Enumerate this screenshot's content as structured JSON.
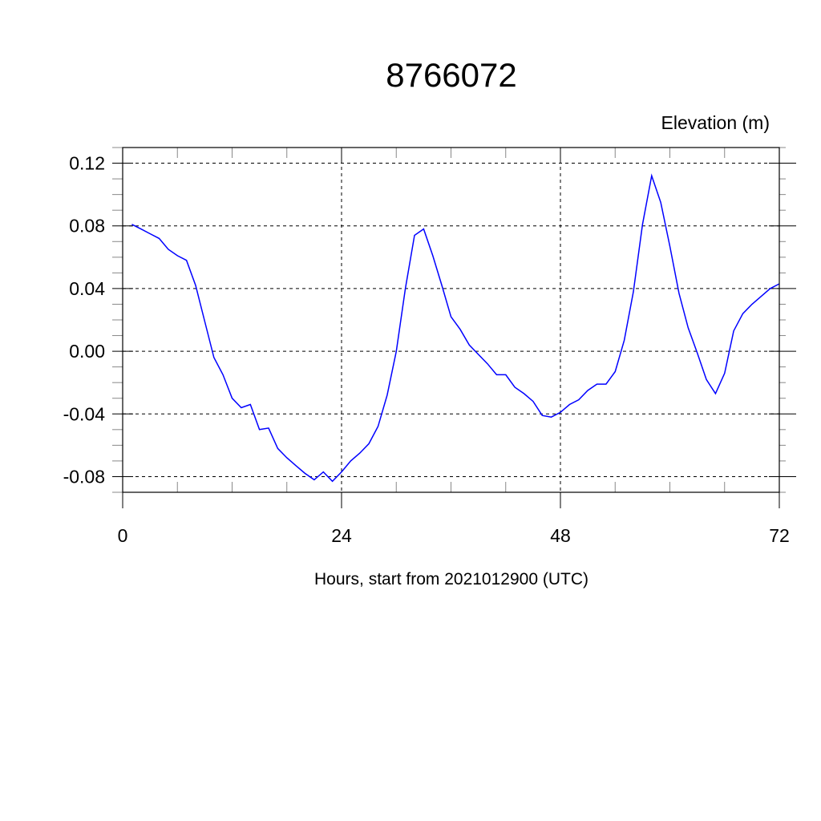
{
  "chart_data": {
    "type": "line",
    "title": "8766072",
    "ylabel": "Elevation (m)",
    "xlabel": "Hours, start from 2021012900 (UTC)",
    "xlim": [
      0,
      72
    ],
    "ylim": [
      -0.09,
      0.13
    ],
    "x_ticks": [
      0,
      24,
      48,
      72
    ],
    "x_tick_labels": [
      "0",
      "24",
      "48",
      "72"
    ],
    "y_ticks": [
      -0.08,
      -0.04,
      0.0,
      0.04,
      0.08,
      0.12
    ],
    "y_tick_labels": [
      "-0.08",
      "-0.04",
      "0.00",
      "0.04",
      "0.08",
      "0.12"
    ],
    "grid": true,
    "line_color": "#0000ff",
    "series": [
      {
        "x": [
          1,
          2,
          3,
          4,
          5,
          6,
          7,
          8,
          9,
          10,
          11,
          12,
          13,
          14,
          15,
          16,
          17,
          18,
          19,
          20,
          21,
          22,
          23,
          24,
          25,
          26,
          27,
          28,
          29,
          30,
          31,
          32,
          33,
          34,
          35,
          36,
          37,
          38,
          39,
          40,
          41,
          42,
          43,
          44,
          45,
          46,
          47,
          48,
          49,
          50,
          51,
          52,
          53,
          54,
          55,
          56,
          57,
          58,
          59,
          60,
          61,
          62,
          63,
          64,
          65,
          66,
          67,
          68,
          69,
          70,
          71,
          72
        ],
        "y": [
          0.081,
          0.078,
          0.075,
          0.072,
          0.065,
          0.061,
          0.058,
          0.042,
          0.019,
          -0.004,
          -0.015,
          -0.03,
          -0.036,
          -0.034,
          -0.05,
          -0.049,
          -0.062,
          -0.068,
          -0.073,
          -0.078,
          -0.082,
          -0.077,
          -0.083,
          -0.077,
          -0.07,
          -0.065,
          -0.059,
          -0.048,
          -0.028,
          0.0,
          0.04,
          0.074,
          0.078,
          0.061,
          0.042,
          0.022,
          0.014,
          0.004,
          -0.002,
          -0.008,
          -0.015,
          -0.015,
          -0.023,
          -0.027,
          -0.032,
          -0.041,
          -0.042,
          -0.039,
          -0.034,
          -0.031,
          -0.025,
          -0.021,
          -0.021,
          -0.013,
          0.007,
          0.038,
          0.081,
          0.112,
          0.095,
          0.067,
          0.037,
          0.015,
          -0.001,
          -0.018,
          -0.027,
          -0.014,
          0.013,
          0.024,
          0.03,
          0.035,
          0.04,
          0.043
        ]
      }
    ]
  }
}
